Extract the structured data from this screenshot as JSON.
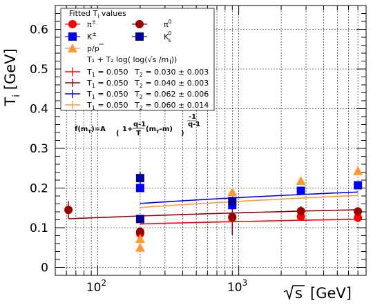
{
  "chart_data": {
    "type": "scatter",
    "xlog": true,
    "xlim": [
      50,
      8000
    ],
    "ylim": [
      -0.02,
      0.66
    ],
    "grid": true,
    "ylabel_main": "T",
    "ylabel_sub": "i",
    "ylabel_unit": "[GeV]",
    "xlabel_root": "s",
    "xlabel_unit": "[GeV]",
    "yticks": [
      0,
      0.1,
      0.2,
      0.3,
      0.4,
      0.5,
      0.6
    ],
    "ytick_labels": [
      "0",
      "0.1",
      "0.2",
      "0.3",
      "0.4",
      "0.5",
      "0.6"
    ],
    "xticks": [
      100,
      1000
    ],
    "xtick_base": "10",
    "xtick_exps": [
      "2",
      "3"
    ],
    "legend": {
      "title_main": "Fitted T",
      "title_sub": "i",
      "title_rest": " values",
      "pion_charged": "π",
      "pion_charged_sup": "±",
      "pion_neutral": "π",
      "pion_neutral_sup": "0",
      "kaon_charged": "K",
      "kaon_charged_sup": "±",
      "kaon_short": "K",
      "kaon_short_sup": "0",
      "kaon_short_sub": "s",
      "proton": "p/p",
      "fit_form": "T₁ + T₂ log( log(√s /m  ))",
      "fit_form_sub": "i",
      "fit_rows": [
        {
          "t1": "T = 0.050",
          "t2": "T = 0.030 ± 0.003"
        },
        {
          "t1": "T = 0.050",
          "t2": "T = 0.040 ± 0.003"
        },
        {
          "t1": "T = 0.050",
          "t2": "T = 0.062 ± 0.006"
        },
        {
          "t1": "T = 0.050",
          "t2": "T = 0.060 ± 0.014"
        }
      ],
      "fit_t1_sub": "1",
      "fit_t2_sub": "2"
    },
    "formula": {
      "lhs": "f(m",
      "lhs_sub": "T",
      "lhs_end": ")=A",
      "one_plus": "1+",
      "frac_num": "q-1",
      "frac_den": "T",
      "paren_term": "(m",
      "paren_sub": "T",
      "paren_end": "-m)",
      "exp_num": "-1",
      "exp_den": "q-1"
    },
    "series": [
      {
        "key": "pion_charged",
        "color": "#ff0000",
        "marker": "circle",
        "points": [
          {
            "x": 200,
            "y": 0.085,
            "err": 0.008
          },
          {
            "x": 900,
            "y": 0.125,
            "err": 0.01
          },
          {
            "x": 2760,
            "y": 0.128,
            "err": 0.006
          },
          {
            "x": 7000,
            "y": 0.125,
            "err": 0.005
          }
        ]
      },
      {
        "key": "pion_neutral",
        "color": "#990000",
        "marker": "circle",
        "points": [
          {
            "x": 62,
            "y": 0.145,
            "err": 0.022
          },
          {
            "x": 200,
            "y": 0.09,
            "err": 0.01
          },
          {
            "x": 900,
            "y": 0.127,
            "err": 0.045
          },
          {
            "x": 2760,
            "y": 0.142,
            "err": 0.012
          },
          {
            "x": 7000,
            "y": 0.141,
            "err": 0.008
          }
        ]
      },
      {
        "key": "kaon_charged",
        "color": "#0000ff",
        "marker": "square",
        "points": [
          {
            "x": 200,
            "y": 0.2,
            "err": 0.01
          },
          {
            "x": 900,
            "y": 0.157,
            "err": 0.012
          },
          {
            "x": 2760,
            "y": 0.193,
            "err": 0.008
          },
          {
            "x": 7000,
            "y": 0.207,
            "err": 0.006
          }
        ]
      },
      {
        "key": "kaon_short",
        "color": "#000099",
        "marker": "square",
        "points": [
          {
            "x": 200,
            "y": 0.225,
            "err": 0.015
          },
          {
            "x": 200,
            "y": 0.122,
            "err": 0.006
          },
          {
            "x": 900,
            "y": 0.167,
            "err": 0.01
          }
        ]
      },
      {
        "key": "proton",
        "color": "#ff9933",
        "marker": "triangle",
        "points": [
          {
            "x": 200,
            "y": 0.05,
            "err": 0.005
          },
          {
            "x": 200,
            "y": 0.072,
            "err": 0.006
          },
          {
            "x": 900,
            "y": 0.19,
            "err": 0.008
          },
          {
            "x": 2760,
            "y": 0.218,
            "err": 0.007
          },
          {
            "x": 7000,
            "y": 0.243,
            "err": 0.01
          }
        ]
      }
    ],
    "fits": [
      {
        "color": "#ff0000",
        "t1": 0.05,
        "t2": 0.03,
        "mass": 0.13957,
        "xfrom": 200,
        "xto": 7000
      },
      {
        "color": "#990000",
        "t1": 0.05,
        "t2": 0.04,
        "mass": 0.13498,
        "xfrom": 62,
        "xto": 7000
      },
      {
        "color": "#0000ff",
        "t1": 0.05,
        "t2": 0.062,
        "mass": 0.49368,
        "xfrom": 200,
        "xto": 7000
      },
      {
        "color": "#ff9933",
        "t1": 0.05,
        "t2": 0.06,
        "mass": 0.93827,
        "xfrom": 200,
        "xto": 7000
      }
    ]
  }
}
